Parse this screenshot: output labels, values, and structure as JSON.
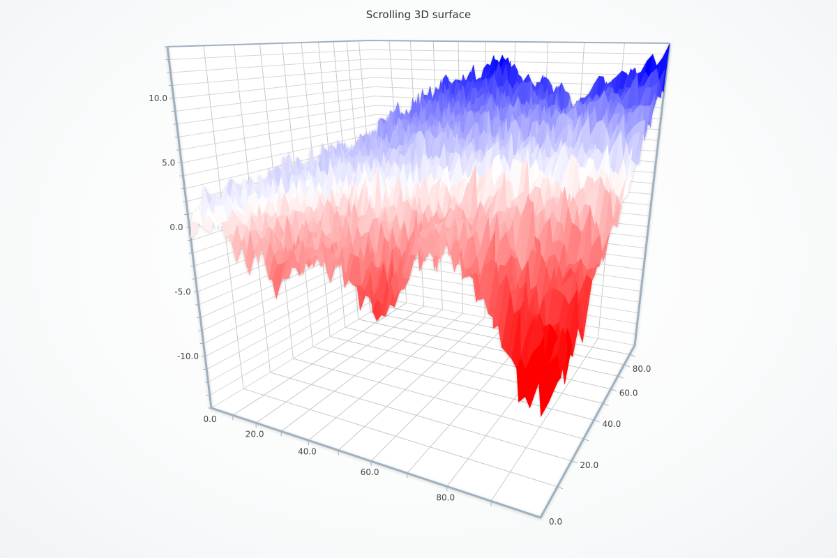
{
  "chart_data": {
    "type": "surface",
    "title": "Scrolling 3D surface",
    "x_axis": {
      "range": [
        0,
        100
      ],
      "tick_labels": [
        "0.0",
        "20.0",
        "40.0",
        "60.0",
        "80.0"
      ],
      "tick_values": [
        0,
        20,
        40,
        60,
        80
      ]
    },
    "z_axis": {
      "range": [
        0,
        100
      ],
      "tick_labels": [
        "0.0",
        "20.0",
        "40.0",
        "60.0",
        "80.0"
      ],
      "tick_values": [
        0,
        20,
        40,
        60,
        80
      ]
    },
    "y_axis": {
      "range": [
        -14,
        14
      ],
      "tick_labels": [
        "-10.0",
        "-5.0",
        "0.0",
        "5.0",
        "10.0"
      ],
      "tick_values": [
        -10,
        -5,
        0,
        5,
        10
      ]
    },
    "grid": true,
    "colorscale": {
      "low": "#ff0000",
      "mid": "#ffffff",
      "high": "#0000ff",
      "low_value": -8,
      "mid_value": 0.5,
      "high_value": 12
    },
    "grid_x": [
      0,
      10,
      20,
      30,
      40,
      50,
      60,
      70,
      80,
      90,
      100
    ],
    "grid_z": [
      0,
      10,
      20,
      30,
      40,
      50,
      60,
      70,
      80,
      90,
      100
    ],
    "values": [
      [
        1,
        0,
        -2,
        -5,
        -3,
        -4,
        -6,
        -3,
        -4,
        -7,
        -9
      ],
      [
        1,
        0.5,
        -1,
        -3,
        -2,
        -2,
        -4,
        -2,
        -2,
        -5,
        -7
      ],
      [
        1,
        1,
        0,
        -1,
        -1,
        0,
        -2,
        -1,
        0,
        -3,
        -5
      ],
      [
        1.5,
        1.5,
        1,
        1,
        1,
        1,
        0,
        1,
        1,
        -1,
        -3
      ],
      [
        1.5,
        2,
        2,
        2,
        3,
        3,
        2,
        2,
        2,
        1,
        -1
      ],
      [
        1.5,
        2,
        3,
        3,
        4,
        4,
        4,
        3,
        3,
        3,
        1
      ],
      [
        2,
        2.5,
        3,
        4,
        5,
        5,
        5,
        5,
        4,
        4,
        3
      ],
      [
        2,
        3,
        4,
        5,
        6,
        6,
        7,
        6,
        5,
        6,
        5
      ],
      [
        2,
        3,
        5,
        6,
        7,
        8,
        8,
        7,
        5,
        7,
        7
      ],
      [
        2,
        3.5,
        5,
        7,
        8,
        9,
        10,
        8,
        6,
        8,
        9
      ],
      [
        2,
        4,
        6,
        8,
        9,
        10,
        11,
        9,
        7,
        10,
        12
      ]
    ],
    "colors": {
      "axis_line": "#9eb0bf",
      "grid_line": "#c8c8c8",
      "wall": "#ffffff"
    }
  }
}
